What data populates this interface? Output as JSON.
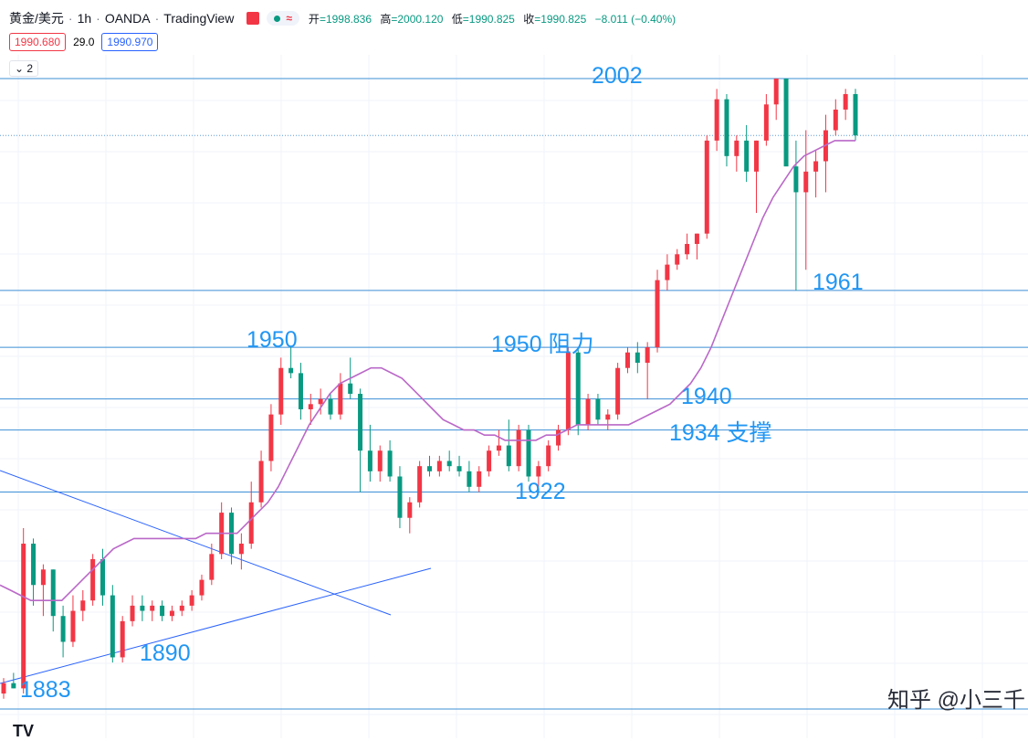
{
  "header": {
    "symbol": "黄金/美元",
    "timeframe": "1h",
    "broker": "OANDA",
    "platform": "TradingView",
    "wave_icon": "≈",
    "ohlc": {
      "open_label": "开",
      "open": "=1998.836",
      "high_label": "高",
      "high": "=2000.120",
      "low_label": "低",
      "low": "=1990.825",
      "close_label": "收",
      "close": "=1990.825",
      "change": "−8.011 (−0.40%)"
    },
    "bid": "1990.680",
    "spread": "29.0",
    "ask": "1990.970",
    "indicator_toggle": "2"
  },
  "watermark": "知乎 @小三千",
  "colors": {
    "up": "#f23645",
    "down": "#089981",
    "ma": "#ba68c8",
    "line": "#2962ff",
    "label": "#2196f3"
  },
  "chart_data": {
    "type": "candlestick",
    "ylim": [
      1878,
      2006
    ],
    "levels": [
      2002,
      1991,
      1961,
      1950,
      1940,
      1934,
      1922,
      1880
    ],
    "annotations": [
      "2002",
      "1961",
      "1950",
      "1950 阻力",
      "1940",
      "1934 支撑",
      "1922",
      "1890",
      "1883"
    ],
    "ma": [
      1904,
      1903,
      1902,
      1901,
      1901,
      1901,
      1901,
      1903,
      1905,
      1907,
      1909,
      1911,
      1912,
      1913,
      1913,
      1913,
      1913,
      1913,
      1913,
      1913,
      1914,
      1914,
      1914,
      1914,
      1916,
      1918,
      1920,
      1923,
      1927,
      1931,
      1935,
      1938,
      1941,
      1943,
      1944,
      1945,
      1946,
      1946,
      1945,
      1944,
      1942,
      1940,
      1938,
      1936,
      1935,
      1934,
      1934,
      1933,
      1933,
      1932,
      1932,
      1932,
      1932,
      1933,
      1933,
      1934,
      1935,
      1935,
      1935,
      1935,
      1935,
      1935,
      1936,
      1937,
      1938,
      1939,
      1941,
      1943,
      1946,
      1950,
      1955,
      1960,
      1965,
      1970,
      1975,
      1979,
      1982,
      1985,
      1987,
      1988,
      1989,
      1990,
      1990,
      1990
    ],
    "candles": [
      {
        "o": 1883,
        "h": 1886,
        "l": 1882,
        "c": 1885
      },
      {
        "o": 1885,
        "h": 1887,
        "l": 1884,
        "c": 1884
      },
      {
        "o": 1884,
        "h": 1915,
        "l": 1883,
        "c": 1912
      },
      {
        "o": 1912,
        "h": 1913,
        "l": 1900,
        "c": 1904
      },
      {
        "o": 1904,
        "h": 1908,
        "l": 1898,
        "c": 1907
      },
      {
        "o": 1907,
        "h": 1907,
        "l": 1895,
        "c": 1898
      },
      {
        "o": 1898,
        "h": 1900,
        "l": 1890,
        "c": 1893
      },
      {
        "o": 1893,
        "h": 1902,
        "l": 1892,
        "c": 1899
      },
      {
        "o": 1899,
        "h": 1903,
        "l": 1897,
        "c": 1901
      },
      {
        "o": 1901,
        "h": 1910,
        "l": 1900,
        "c": 1909
      },
      {
        "o": 1909,
        "h": 1911,
        "l": 1900,
        "c": 1902
      },
      {
        "o": 1902,
        "h": 1904,
        "l": 1889,
        "c": 1890
      },
      {
        "o": 1890,
        "h": 1898,
        "l": 1889,
        "c": 1897
      },
      {
        "o": 1897,
        "h": 1902,
        "l": 1896,
        "c": 1900
      },
      {
        "o": 1900,
        "h": 1902,
        "l": 1897,
        "c": 1899
      },
      {
        "o": 1899,
        "h": 1901,
        "l": 1897,
        "c": 1900
      },
      {
        "o": 1900,
        "h": 1901,
        "l": 1897,
        "c": 1898
      },
      {
        "o": 1898,
        "h": 1900,
        "l": 1897,
        "c": 1899
      },
      {
        "o": 1899,
        "h": 1901,
        "l": 1898,
        "c": 1900
      },
      {
        "o": 1900,
        "h": 1903,
        "l": 1899,
        "c": 1902
      },
      {
        "o": 1902,
        "h": 1906,
        "l": 1901,
        "c": 1905
      },
      {
        "o": 1905,
        "h": 1912,
        "l": 1904,
        "c": 1910
      },
      {
        "o": 1910,
        "h": 1920,
        "l": 1909,
        "c": 1918
      },
      {
        "o": 1918,
        "h": 1919,
        "l": 1908,
        "c": 1910
      },
      {
        "o": 1910,
        "h": 1914,
        "l": 1907,
        "c": 1912
      },
      {
        "o": 1912,
        "h": 1924,
        "l": 1911,
        "c": 1920
      },
      {
        "o": 1920,
        "h": 1930,
        "l": 1919,
        "c": 1928
      },
      {
        "o": 1928,
        "h": 1939,
        "l": 1926,
        "c": 1937
      },
      {
        "o": 1937,
        "h": 1948,
        "l": 1935,
        "c": 1946
      },
      {
        "o": 1946,
        "h": 1950,
        "l": 1944,
        "c": 1945
      },
      {
        "o": 1945,
        "h": 1947,
        "l": 1936,
        "c": 1938
      },
      {
        "o": 1938,
        "h": 1941,
        "l": 1935,
        "c": 1939
      },
      {
        "o": 1939,
        "h": 1942,
        "l": 1937,
        "c": 1940
      },
      {
        "o": 1940,
        "h": 1941,
        "l": 1936,
        "c": 1937
      },
      {
        "o": 1937,
        "h": 1945,
        "l": 1936,
        "c": 1943
      },
      {
        "o": 1943,
        "h": 1948,
        "l": 1940,
        "c": 1941
      },
      {
        "o": 1941,
        "h": 1942,
        "l": 1922,
        "c": 1930
      },
      {
        "o": 1930,
        "h": 1935,
        "l": 1924,
        "c": 1926
      },
      {
        "o": 1926,
        "h": 1931,
        "l": 1924,
        "c": 1930
      },
      {
        "o": 1930,
        "h": 1932,
        "l": 1924,
        "c": 1925
      },
      {
        "o": 1925,
        "h": 1927,
        "l": 1915,
        "c": 1917
      },
      {
        "o": 1917,
        "h": 1921,
        "l": 1914,
        "c": 1920
      },
      {
        "o": 1920,
        "h": 1928,
        "l": 1919,
        "c": 1927
      },
      {
        "o": 1927,
        "h": 1929,
        "l": 1925,
        "c": 1926
      },
      {
        "o": 1926,
        "h": 1929,
        "l": 1925,
        "c": 1928
      },
      {
        "o": 1928,
        "h": 1930,
        "l": 1926,
        "c": 1927
      },
      {
        "o": 1927,
        "h": 1929,
        "l": 1925,
        "c": 1926
      },
      {
        "o": 1926,
        "h": 1928,
        "l": 1922,
        "c": 1923
      },
      {
        "o": 1923,
        "h": 1927,
        "l": 1922,
        "c": 1926
      },
      {
        "o": 1926,
        "h": 1931,
        "l": 1925,
        "c": 1930
      },
      {
        "o": 1930,
        "h": 1934,
        "l": 1929,
        "c": 1931
      },
      {
        "o": 1931,
        "h": 1936,
        "l": 1926,
        "c": 1927
      },
      {
        "o": 1927,
        "h": 1935,
        "l": 1926,
        "c": 1934
      },
      {
        "o": 1934,
        "h": 1935,
        "l": 1924,
        "c": 1925
      },
      {
        "o": 1925,
        "h": 1928,
        "l": 1923,
        "c": 1927
      },
      {
        "o": 1927,
        "h": 1932,
        "l": 1926,
        "c": 1931
      },
      {
        "o": 1931,
        "h": 1935,
        "l": 1930,
        "c": 1934
      },
      {
        "o": 1934,
        "h": 1950,
        "l": 1933,
        "c": 1949
      },
      {
        "o": 1949,
        "h": 1950,
        "l": 1933,
        "c": 1935
      },
      {
        "o": 1935,
        "h": 1941,
        "l": 1934,
        "c": 1940
      },
      {
        "o": 1940,
        "h": 1941,
        "l": 1935,
        "c": 1936
      },
      {
        "o": 1936,
        "h": 1938,
        "l": 1934,
        "c": 1937
      },
      {
        "o": 1937,
        "h": 1947,
        "l": 1936,
        "c": 1946
      },
      {
        "o": 1946,
        "h": 1950,
        "l": 1945,
        "c": 1949
      },
      {
        "o": 1949,
        "h": 1951,
        "l": 1945,
        "c": 1947
      },
      {
        "o": 1947,
        "h": 1951,
        "l": 1940,
        "c": 1950
      },
      {
        "o": 1950,
        "h": 1965,
        "l": 1949,
        "c": 1963
      },
      {
        "o": 1963,
        "h": 1968,
        "l": 1961,
        "c": 1966
      },
      {
        "o": 1966,
        "h": 1969,
        "l": 1965,
        "c": 1968
      },
      {
        "o": 1968,
        "h": 1972,
        "l": 1967,
        "c": 1970
      },
      {
        "o": 1970,
        "h": 1972,
        "l": 1967,
        "c": 1972
      },
      {
        "o": 1972,
        "h": 1991,
        "l": 1971,
        "c": 1990
      },
      {
        "o": 1990,
        "h": 2000,
        "l": 1988,
        "c": 1998
      },
      {
        "o": 1998,
        "h": 1999,
        "l": 1985,
        "c": 1987
      },
      {
        "o": 1987,
        "h": 1991,
        "l": 1984,
        "c": 1990
      },
      {
        "o": 1990,
        "h": 1993,
        "l": 1982,
        "c": 1984
      },
      {
        "o": 1984,
        "h": 1990,
        "l": 1976,
        "c": 1990
      },
      {
        "o": 1990,
        "h": 1999,
        "l": 1989,
        "c": 1997
      },
      {
        "o": 1997,
        "h": 2002,
        "l": 1994,
        "c": 2002
      },
      {
        "o": 2002,
        "h": 2002,
        "l": 1986,
        "c": 1985
      },
      {
        "o": 1985,
        "h": 1990,
        "l": 1961,
        "c": 1980
      },
      {
        "o": 1980,
        "h": 1992,
        "l": 1965,
        "c": 1984
      },
      {
        "o": 1984,
        "h": 1988,
        "l": 1979,
        "c": 1986
      },
      {
        "o": 1986,
        "h": 1995,
        "l": 1980,
        "c": 1992
      },
      {
        "o": 1992,
        "h": 1998,
        "l": 1991,
        "c": 1996
      },
      {
        "o": 1996,
        "h": 2000,
        "l": 1994,
        "c": 1999
      },
      {
        "o": 1999,
        "h": 2000,
        "l": 1990,
        "c": 1991
      }
    ]
  }
}
